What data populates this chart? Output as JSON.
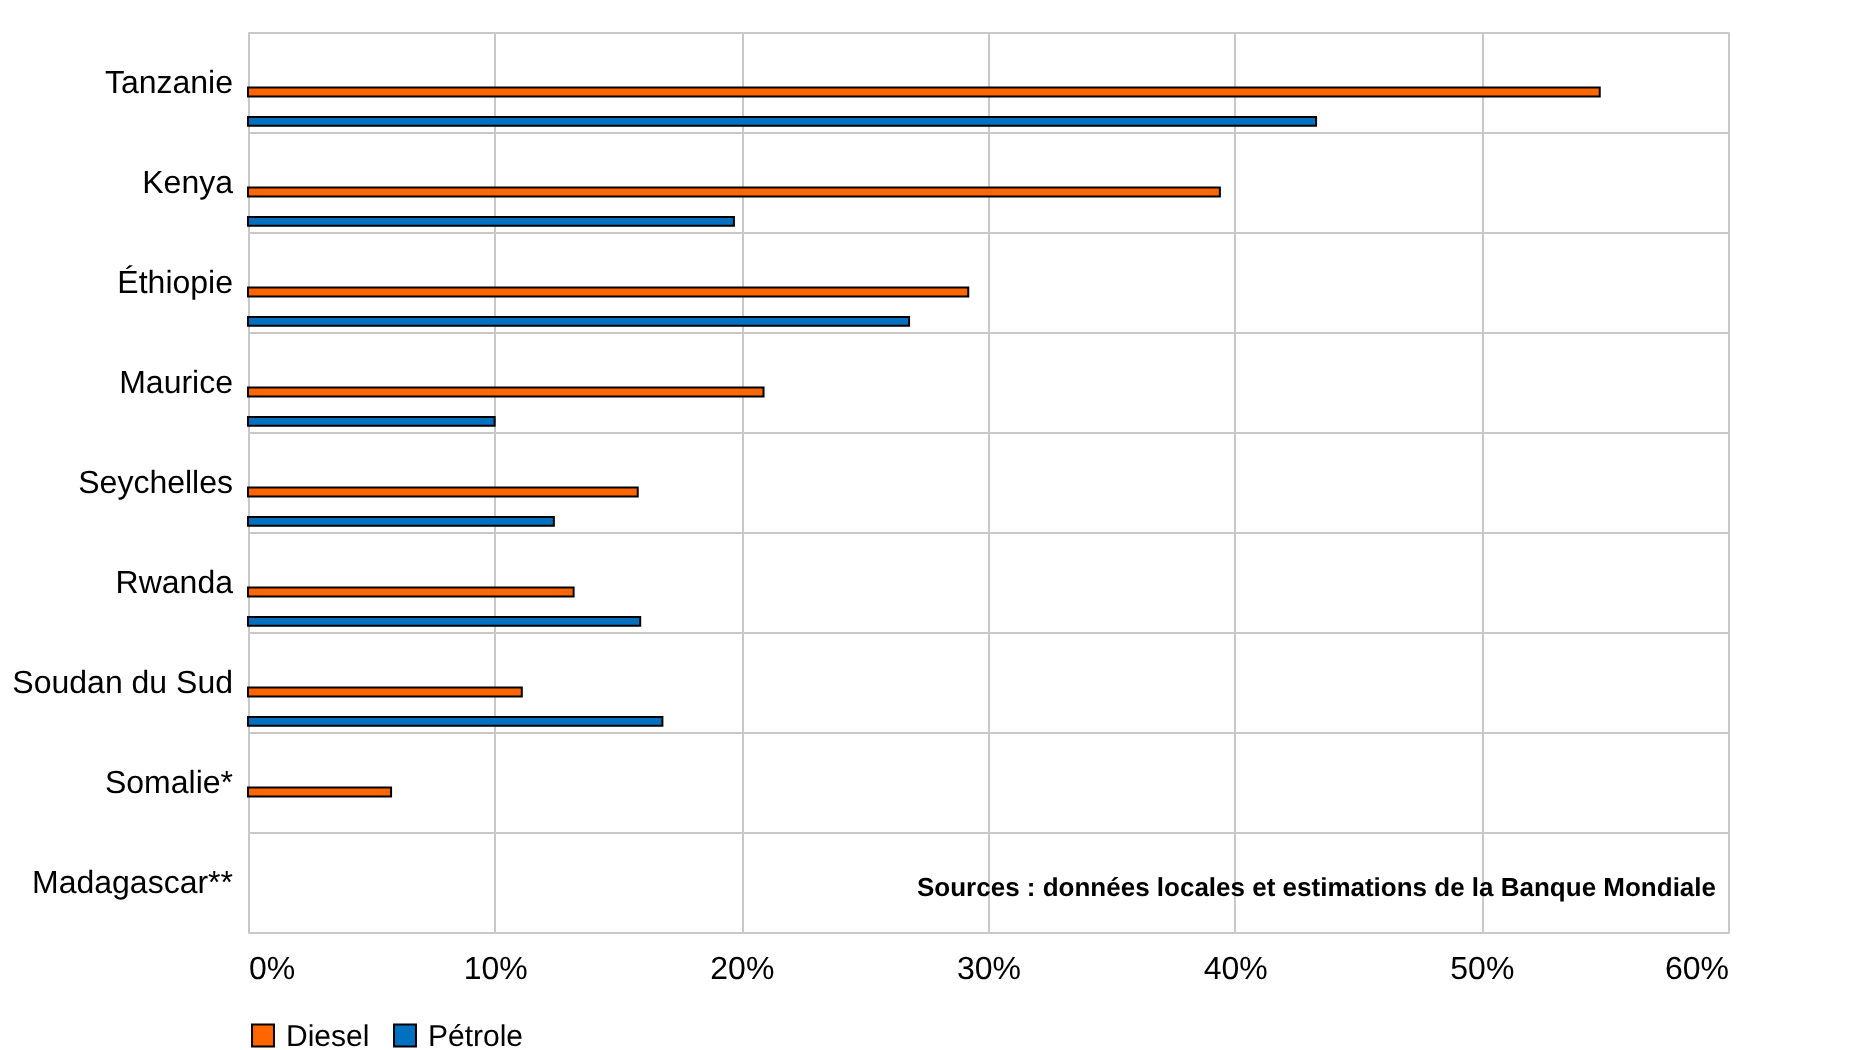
{
  "chart_data": {
    "type": "bar",
    "orientation": "horizontal",
    "categories": [
      "Tanzanie",
      "Kenya",
      "Éthiopie",
      "Maurice",
      "Seychelles",
      "Rwanda",
      "Soudan du Sud",
      "Somalie*",
      "Madagascar**"
    ],
    "series": [
      {
        "name": "Diesel",
        "color": "#ff6600",
        "values": [
          54.8,
          39.4,
          29.2,
          20.9,
          15.8,
          13.2,
          11.1,
          5.8,
          null
        ]
      },
      {
        "name": "Pétrole",
        "color": "#0070c0",
        "values": [
          43.3,
          19.7,
          26.8,
          10.0,
          12.4,
          15.9,
          16.8,
          null,
          null
        ]
      }
    ],
    "xlim": [
      0,
      60
    ],
    "xticks": [
      {
        "value": 0,
        "label": "0%"
      },
      {
        "value": 10,
        "label": "10%"
      },
      {
        "value": 20,
        "label": "20%"
      },
      {
        "value": 30,
        "label": "30%"
      },
      {
        "value": 40,
        "label": "40%"
      },
      {
        "value": 50,
        "label": "50%"
      },
      {
        "value": 60,
        "label": "60%"
      }
    ],
    "grid": true,
    "legend": "bottom",
    "annotations": [
      "Sources : données locales et estimations de la Banque Mondiale"
    ]
  }
}
